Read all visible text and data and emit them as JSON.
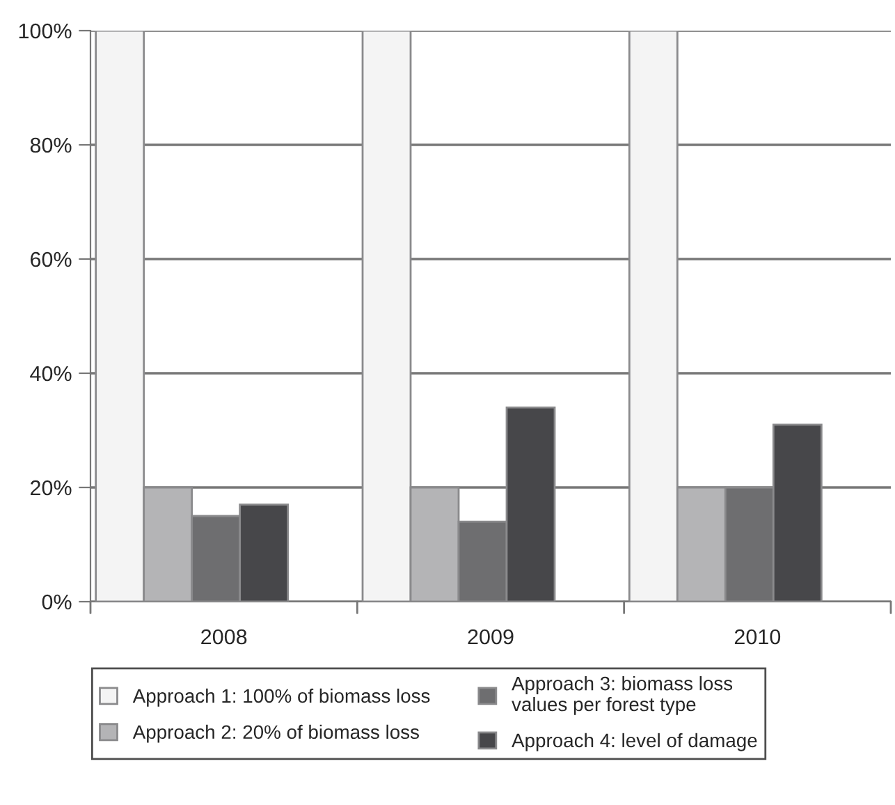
{
  "chart_data": {
    "type": "bar",
    "categories": [
      "2008",
      "2009",
      "2010"
    ],
    "series": [
      {
        "name": "Approach 1: 100% of biomass loss",
        "color": "#f4f4f4",
        "values": [
          100,
          100,
          100
        ]
      },
      {
        "name": "Approach 2: 20% of biomass loss",
        "color": "#b4b4b6",
        "values": [
          20,
          20,
          20
        ]
      },
      {
        "name": "Approach 3: biomass loss\nvalues per forest type",
        "color": "#6e6e70",
        "values": [
          15,
          14,
          20
        ]
      },
      {
        "name": "Approach 4: level of damage",
        "color": "#47474a",
        "values": [
          17,
          34,
          31
        ]
      }
    ],
    "ylim": [
      0,
      100
    ],
    "yticks": [
      {
        "value": 0,
        "label": "0%"
      },
      {
        "value": 20,
        "label": "20%"
      },
      {
        "value": 40,
        "label": "40%"
      },
      {
        "value": 60,
        "label": "60%"
      },
      {
        "value": 80,
        "label": "80%"
      },
      {
        "value": 100,
        "label": "100%"
      }
    ],
    "grid": "y",
    "legend": "bottom"
  }
}
